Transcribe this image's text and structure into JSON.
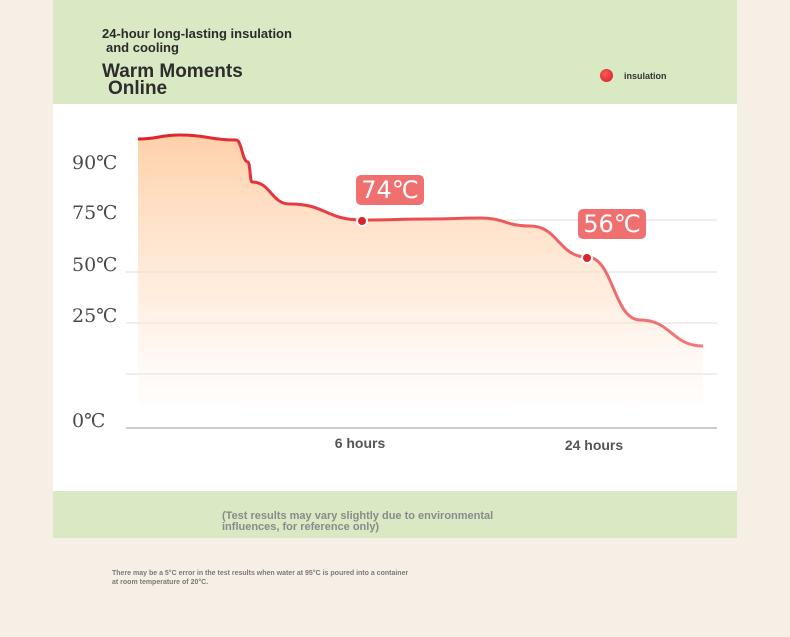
{
  "header": {
    "headline_line1": "24-hour long-lasting insulation",
    "headline_line2": "and cooling",
    "brand_line1": "Warm Moments",
    "brand_line2": "Online"
  },
  "legend": {
    "label": "insulation",
    "color": "#e02020"
  },
  "note": "(Test results may vary slightly due to environmental influences, for reference only)",
  "footnote": "There may be a 5°C error in the test results when water at 95°C is poured into a container at room temperature of 20°C.",
  "chart_data": {
    "type": "line",
    "title": "",
    "xlabel": "",
    "ylabel": "",
    "y_ticks": [
      "0℃",
      "25℃",
      "50℃",
      "75℃",
      "90℃"
    ],
    "x_ticks": [
      "6 hours",
      "24 hours"
    ],
    "series": [
      {
        "name": "insulation",
        "color": "#e8353f",
        "points": [
          {
            "x": 0,
            "y": 94
          },
          {
            "x": 3.3,
            "y": 80
          },
          {
            "x": 6,
            "y": 74
          },
          {
            "x": 9,
            "y": 74
          },
          {
            "x": 16,
            "y": 74
          },
          {
            "x": 24,
            "y": 56
          },
          {
            "x": 27,
            "y": 40
          }
        ]
      }
    ],
    "data_labels": [
      {
        "x": 6,
        "y": 74,
        "text": "74℃"
      },
      {
        "x": 24,
        "y": 56,
        "text": "56℃"
      }
    ],
    "label_color": "#f07070"
  }
}
